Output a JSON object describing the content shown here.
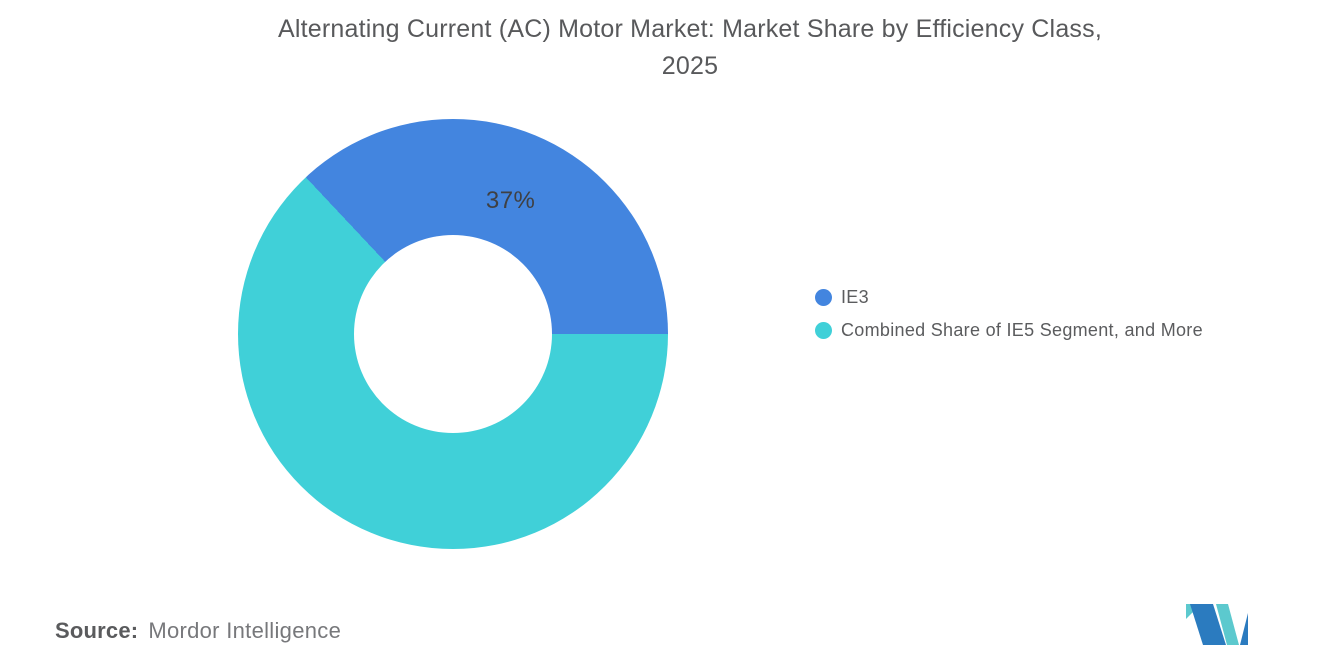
{
  "header": {
    "title_line1": "Alternating Current (AC) Motor Market: Market Share by Efficiency Class,",
    "title_line2": "2025"
  },
  "chart_data": {
    "type": "pie",
    "title": "Alternating Current (AC) Motor Market: Market Share by Efficiency Class, 2025",
    "donut": true,
    "inner_radius_ratio": 0.46,
    "start_angle_deg": -43.2,
    "label_radius_ratio": 0.675,
    "legend_position": "right",
    "categories": [
      "IE3",
      "Combined Share of IE5 Segment, and More"
    ],
    "values": [
      37,
      63
    ],
    "slices": [
      {
        "label": "IE3",
        "value": 37,
        "color": "#4385df",
        "data_label": "37%"
      },
      {
        "label": "Combined Share of IE5 Segment, and More",
        "value": 63,
        "color": "#40d0d8",
        "data_label": ""
      }
    ]
  },
  "footer": {
    "source_label": "Source:",
    "source_value": "Mordor Intelligence"
  },
  "logo": {
    "name": "mordor-intelligence-logo",
    "blue": "#2b7bbf",
    "teal": "#5cc9ce"
  },
  "colors": {
    "background": "#ffffff",
    "title_text": "#58595b",
    "data_label_text": "#3f4043",
    "legend_text": "#5b5c5e"
  }
}
